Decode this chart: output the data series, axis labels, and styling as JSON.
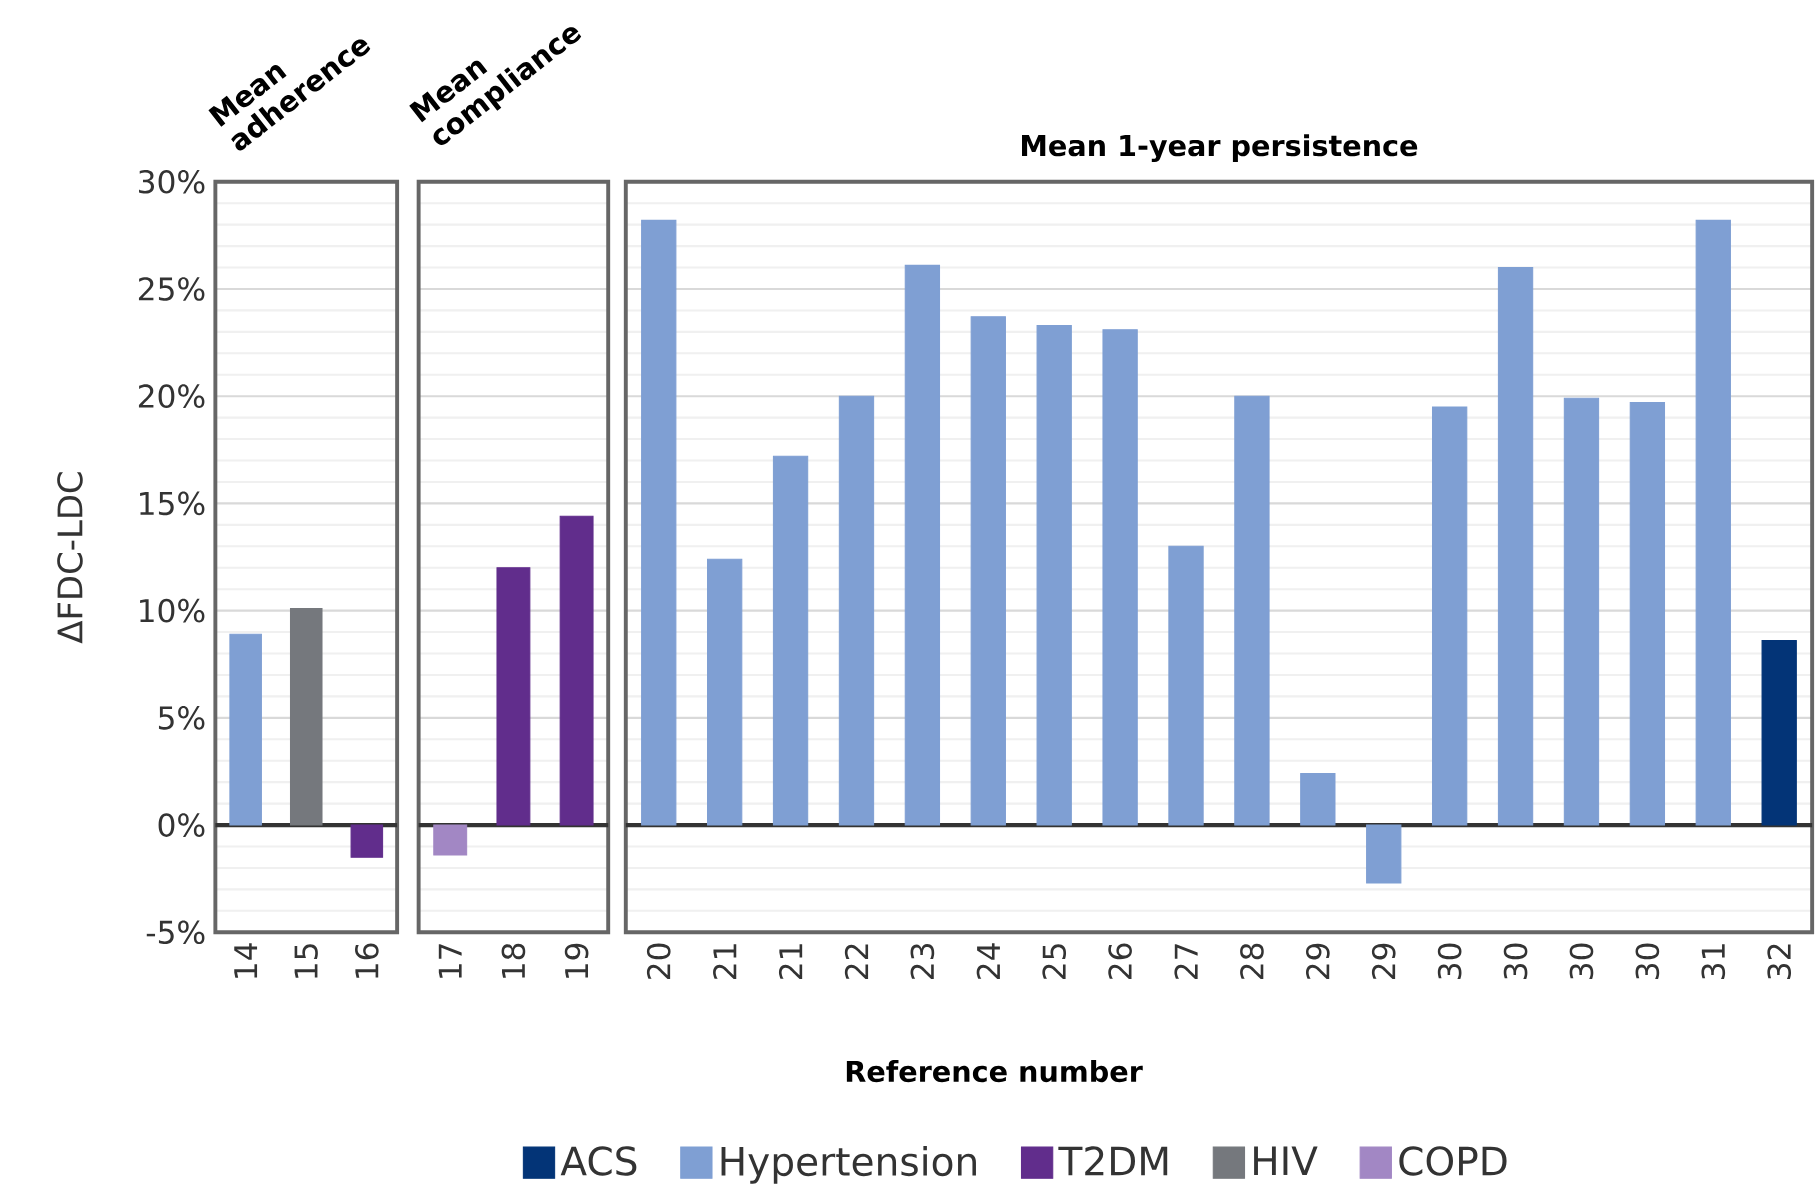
{
  "chart_data": [
    {
      "type": "bar",
      "title": "Mean adherence",
      "ylabel": "ΔFDC-LDC",
      "categories": [
        "14",
        "15",
        "16"
      ],
      "series": [
        {
          "color": "#7f9fd3",
          "values": [
            8.9,
            null,
            null
          ]
        },
        {
          "color": "#75787d",
          "values": [
            null,
            10.1,
            null
          ]
        },
        {
          "color": "#612d8c",
          "values": [
            null,
            null,
            -1.5
          ]
        }
      ],
      "ylim": [
        -5,
        30
      ],
      "yticks": [
        {
          "value": -5,
          "label": "-5%"
        },
        {
          "value": 0,
          "label": "0%"
        },
        {
          "value": 5,
          "label": "5%"
        },
        {
          "value": 10,
          "label": "10%"
        },
        {
          "value": 15,
          "label": "15%"
        },
        {
          "value": 20,
          "label": "20%"
        },
        {
          "value": 25,
          "label": "25%"
        },
        {
          "value": 30,
          "label": "30%"
        }
      ],
      "grid": "y"
    },
    {
      "type": "bar",
      "title": "Mean compliance",
      "categories": [
        "17",
        "18",
        "19"
      ],
      "series": [
        {
          "color": "#a287c4",
          "values": [
            -1.4,
            null,
            null
          ]
        },
        {
          "color": "#612d8c",
          "values": [
            null,
            12.0,
            14.4
          ]
        }
      ],
      "ylim": [
        -5,
        30
      ],
      "yticks": [
        {
          "value": -5,
          "label": null
        },
        {
          "value": 0,
          "label": null
        },
        {
          "value": 5,
          "label": null
        },
        {
          "value": 10,
          "label": null
        },
        {
          "value": 15,
          "label": null
        },
        {
          "value": 20,
          "label": null
        },
        {
          "value": 25,
          "label": null
        },
        {
          "value": 30,
          "label": null
        }
      ],
      "grid": "y",
      "tick_labels": "x"
    },
    {
      "type": "bar",
      "title": "Mean 1-year persistence",
      "xlabel": "Reference number",
      "categories": [
        "20",
        "21",
        "21",
        "22",
        "23",
        "24",
        "25",
        "26",
        "27",
        "28",
        "29",
        "29",
        "30",
        "30",
        "30",
        "30",
        "31",
        "32"
      ],
      "series": [
        {
          "name": "ACS",
          "color": "#033477",
          "values": [
            null,
            null,
            null,
            null,
            null,
            null,
            null,
            null,
            null,
            null,
            null,
            null,
            null,
            null,
            null,
            null,
            null,
            8.6
          ]
        },
        {
          "name": "Hypertension",
          "color": "#7f9fd3",
          "values": [
            28.2,
            12.4,
            17.2,
            20.0,
            26.1,
            23.7,
            23.3,
            23.1,
            13.0,
            20.0,
            2.4,
            -2.7,
            19.5,
            26.0,
            19.9,
            19.7,
            28.2,
            null
          ]
        },
        {
          "name": "T2DM",
          "color": "#612d8c",
          "values": [
            null,
            null,
            null,
            null,
            null,
            null,
            null,
            null,
            null,
            null,
            null,
            null,
            null,
            null,
            null,
            null,
            null,
            null
          ]
        },
        {
          "name": "HIV",
          "color": "#75787d",
          "values": [
            null,
            null,
            null,
            null,
            null,
            null,
            null,
            null,
            null,
            null,
            null,
            null,
            null,
            null,
            null,
            null,
            null,
            null
          ]
        },
        {
          "name": "COPD",
          "color": "#a287c4",
          "values": [
            null,
            null,
            null,
            null,
            null,
            null,
            null,
            null,
            null,
            null,
            null,
            null,
            null,
            null,
            null,
            null,
            null,
            null
          ]
        }
      ],
      "ylim": [
        -5,
        30
      ],
      "yticks": [
        {
          "value": -5,
          "label": null
        },
        {
          "value": 0,
          "label": null
        },
        {
          "value": 5,
          "label": null
        },
        {
          "value": 10,
          "label": null
        },
        {
          "value": 15,
          "label": null
        },
        {
          "value": 20,
          "label": null
        },
        {
          "value": 25,
          "label": null
        },
        {
          "value": 30,
          "label": null
        }
      ],
      "grid": "y",
      "tick_labels": "x",
      "legend": "bottom"
    }
  ]
}
